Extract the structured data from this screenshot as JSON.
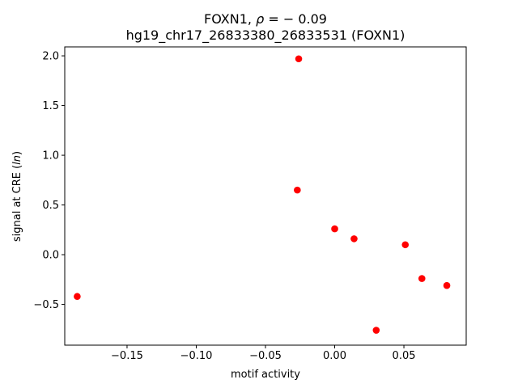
{
  "chart_data": {
    "type": "scatter",
    "title_line1_prefix": "FOXN1, ",
    "title_line1_rho": "ρ",
    "title_line1_suffix": " = − 0.09",
    "title_line2": "hg19_chr17_26833380_26833531 (FOXN1)",
    "xlabel": "motif activity",
    "ylabel_prefix": "signal at CRE (",
    "ylabel_italic": "ln",
    "ylabel_suffix": ")",
    "xlim": [
      -0.195,
      0.095
    ],
    "ylim": [
      -0.91,
      2.09
    ],
    "xticks": [
      -0.15,
      -0.1,
      -0.05,
      0.0,
      0.05
    ],
    "xtick_labels": [
      "−0.15",
      "−0.10",
      "−0.05",
      "0.00",
      "0.05"
    ],
    "yticks": [
      -0.5,
      0.0,
      0.5,
      1.0,
      1.5,
      2.0
    ],
    "ytick_labels": [
      "−0.5",
      "0.0",
      "0.5",
      "1.0",
      "1.5",
      "2.0"
    ],
    "grid": false,
    "marker_color": "#ff0000",
    "points": [
      {
        "x": -0.186,
        "y": -0.42
      },
      {
        "x": -0.026,
        "y": 1.97
      },
      {
        "x": -0.027,
        "y": 0.65
      },
      {
        "x": 0.0,
        "y": 0.26
      },
      {
        "x": 0.014,
        "y": 0.16
      },
      {
        "x": 0.051,
        "y": 0.1
      },
      {
        "x": 0.063,
        "y": -0.24
      },
      {
        "x": 0.081,
        "y": -0.31
      },
      {
        "x": 0.03,
        "y": -0.76
      }
    ]
  }
}
